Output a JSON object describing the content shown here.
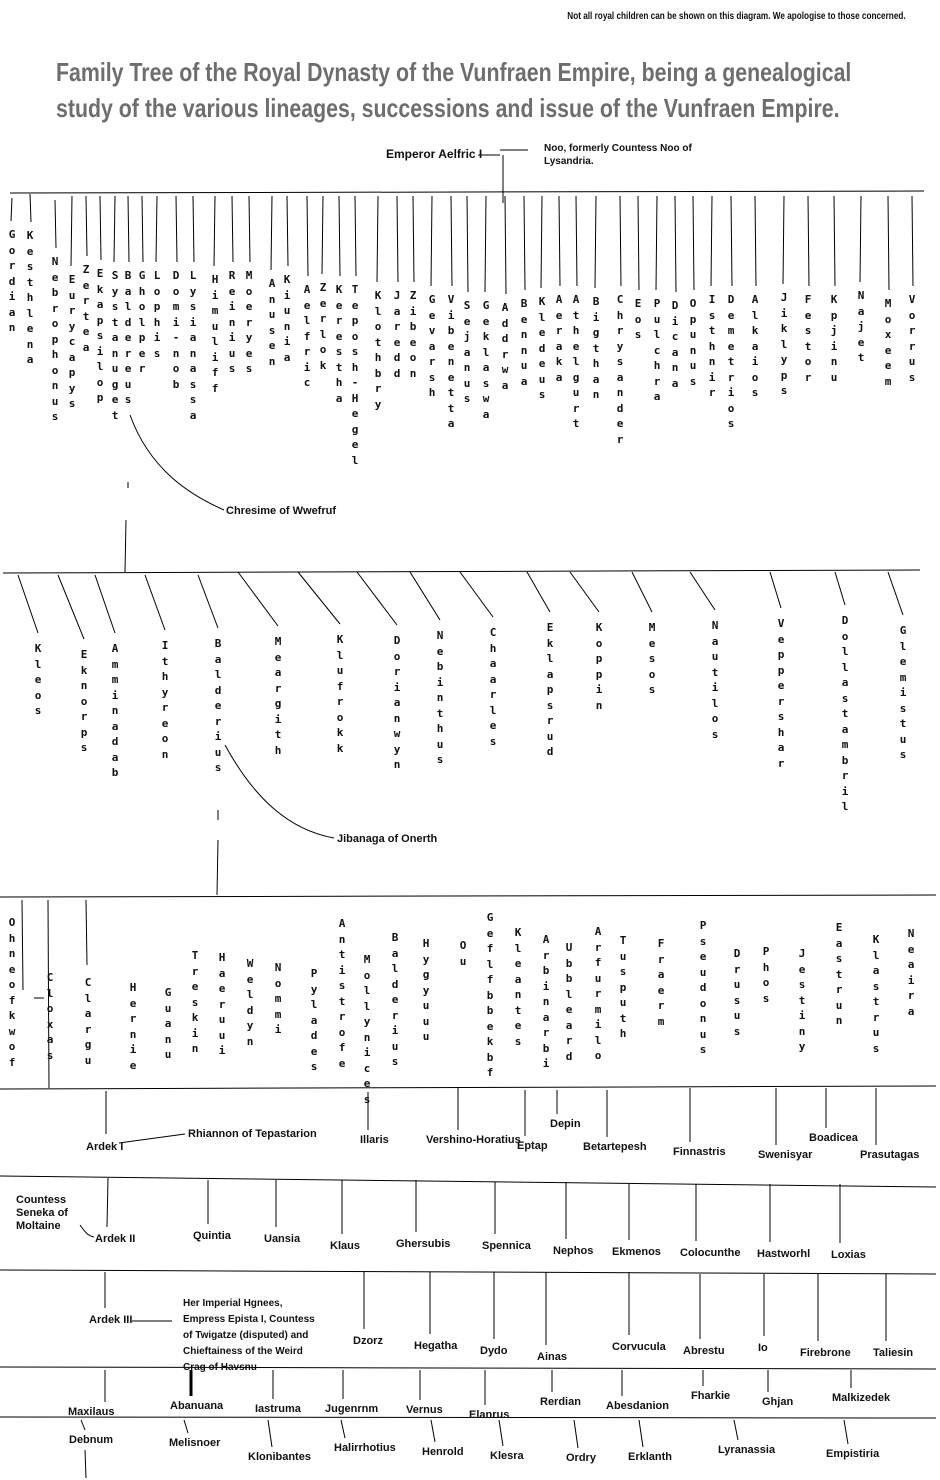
{
  "note": "Not all royal children can be shown on this diagram. We apologise to those concerned.",
  "title": "Family Tree of the Royal Dynasty of the Vunfraen Empire, being a genealogical study of the various lineages, successions and issue of the Vunfraen Empire.",
  "gen1": {
    "founder": "Emperor Aelfric I",
    "consort": "Noo, formerly Countess Noo of Lysandria."
  },
  "gen2_children": [
    "Gordian",
    "Kesthlena",
    "Nebrophonus",
    "Eurycapys",
    "Zertea",
    "Ekapsilop",
    "Systanuget",
    "Baldereus",
    "Gholper",
    "Lophis",
    "Domi-nob",
    "Lysianassa",
    "Himuliff",
    "Reinius",
    "Moeryes",
    "Anusen",
    "Kiunia",
    "Aelfric",
    "Zerlok",
    "Kerestha",
    "Teposh-Hegel",
    "Klothbry",
    "Jaredd",
    "Zibeon",
    "Gevarsh",
    "Vibenetta",
    "Sejanus",
    "Geklaswa",
    "Addrwa",
    "Bennua",
    "Kledeus",
    "Aeraka",
    "Athelgurt",
    "Bigthan",
    "Chrysander",
    "Eos",
    "Pulchra",
    "Dicana",
    "Opunus",
    "Isthnir",
    "Demetrios",
    "Alkaios",
    "Jiklyps",
    "Festor",
    "Kpjinu",
    "Najet",
    "Moxeem",
    "Vorrus"
  ],
  "gen2_spouse": "Chresime of Wwefruf",
  "gen3_children": [
    "Kleos",
    "Eknorps",
    "Amminadab",
    "Ithyreon",
    "Balderius",
    "Meargith",
    "Klufrokk",
    "Dorianwyn",
    "Nebinthus",
    "Chaarles",
    "Eklapsrud",
    "Koppin",
    "Mesos",
    "Nautilos",
    "Veppershar",
    "Dollastambril",
    "Glemistus"
  ],
  "gen3_spouse": "Jibanaga of Onerth",
  "gen4_children": [
    "Ohneofkwof",
    "Cloxas",
    "Clargu",
    "Hernie",
    "Guanu",
    "Treskin",
    "Haeruui",
    "Weldyn",
    "Nommi",
    "Pylades",
    "Antistrofe",
    "Mollynices",
    "Balderius",
    "Hygyuuu",
    "Ou",
    "Geflfbbekbf",
    "Kleantes",
    "Arbinarbi",
    "Ubbleard",
    "Arfurmilo",
    "Tusputh",
    "Fraerm",
    "Pseudonus",
    "Drusus",
    "Phos",
    "Jestiny",
    "Eastrun",
    "Klastrus",
    "Neaira"
  ],
  "gen5": {
    "heir": "Ardek I",
    "heir_spouse": "Rhiannon of Tepastarion",
    "others": [
      "Illaris",
      "Vershino-Horatius",
      "Eptap",
      "Depin",
      "Betartepesh",
      "Finnastris",
      "Swenisyar",
      "Boadicea",
      "Prasutagas"
    ]
  },
  "gen6": {
    "heir": "Ardek II",
    "heir_spouse": "Countess Seneka of Moltaine",
    "others": [
      "Quintia",
      "Uansia",
      "Klaus",
      "Ghersubis",
      "Spennica",
      "Nephos",
      "Ekmenos",
      "Colocunthe",
      "Hastworhl",
      "Loxias"
    ]
  },
  "gen7": {
    "heir": "Ardek III",
    "heir_spouse": "Her Imperial Hgnees, Empress Epista I, Countess of Twigatze (disputed) and Chieftainess of the Weird Crag of Havsnu",
    "others": [
      "Dzorz",
      "Hegatha",
      "Dydo",
      "Ainas",
      "Corvucula",
      "Abrestu",
      "Io",
      "Firebrone",
      "Taliesin"
    ]
  },
  "gen8": {
    "row_a": [
      "Maxilaus",
      "Abanuana",
      "Iastruma",
      "Jugenrnm",
      "Vernus",
      "Elanrus",
      "Rerdian",
      "Abesdanion",
      "Fharkie",
      "Ghjan",
      "Malkizedek"
    ],
    "row_b": [
      "Debnum",
      "Melisnoer",
      "Klonibantes",
      "Halirrhotius",
      "Henrold",
      "Klesra",
      "Ordry",
      "Erklanth",
      "Lyranassia",
      "Empistiria"
    ]
  }
}
